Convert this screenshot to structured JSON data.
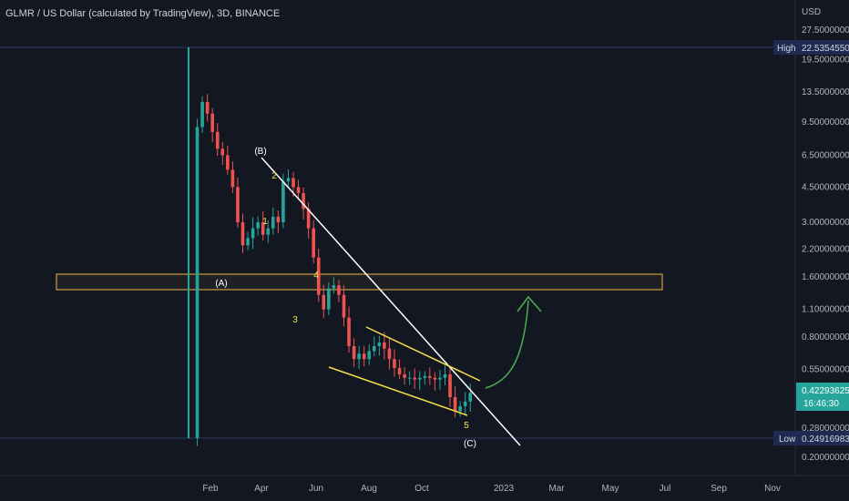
{
  "title": "GLMR / US Dollar (calculated by TradingView), 3D, BINANCE",
  "price_axis": {
    "currency": "USD",
    "ticks": [
      "27.50000000",
      "19.50000000",
      "13.50000000",
      "9.50000000",
      "6.50000000",
      "4.50000000",
      "3.00000000",
      "2.20000000",
      "1.60000000",
      "1.10000000",
      "0.80000000",
      "0.55000000",
      "0.28000000",
      "0.20000000"
    ],
    "high_label": "High",
    "high_value": "22.53545502",
    "low_label": "Low",
    "low_value": "0.24916983",
    "last_price": "0.42293625",
    "countdown": "16:46:30"
  },
  "time_axis": {
    "ticks": [
      "Feb",
      "Apr",
      "Jun",
      "Aug",
      "Oct",
      "2023",
      "Mar",
      "May",
      "Jul",
      "Sep",
      "Nov"
    ]
  },
  "annotations": {
    "waves": [
      "(A)",
      "(B)",
      "(C)"
    ],
    "sub_waves": [
      "1",
      "2",
      "3",
      "4",
      "5"
    ]
  },
  "colors": {
    "background": "#131722",
    "up": "#26a69a",
    "down": "#ef5350",
    "trendline": "#ffffff",
    "channel": "#f2e14b",
    "zone_border": "#f0b44a",
    "projection": "#4caf50",
    "axis_text": "#b2b5be",
    "high_low_box": "#1e2a52"
  },
  "chart_data": {
    "type": "candlestick",
    "scale": "log",
    "x_ticks": [
      "Feb",
      "Apr",
      "Jun",
      "Aug",
      "Oct",
      "2023",
      "Mar",
      "May",
      "Jul",
      "Sep",
      "Nov"
    ],
    "y_ticks": [
      27.5,
      19.5,
      13.5,
      9.5,
      6.5,
      4.5,
      3.0,
      2.2,
      1.6,
      1.1,
      0.8,
      0.55,
      0.28,
      0.2
    ],
    "high": 22.53545502,
    "low": 0.24916983,
    "last": 0.42293625,
    "resistance_zone": [
      1.4,
      1.7
    ],
    "path_closes": [
      0.25,
      9.0,
      12.0,
      10.5,
      8.5,
      7.0,
      6.5,
      5.5,
      4.5,
      3.0,
      2.3,
      2.5,
      2.8,
      3.0,
      2.6,
      2.8,
      3.2,
      3.0,
      4.8,
      5.0,
      4.5,
      4.2,
      3.5,
      2.8,
      2.0,
      1.3,
      1.1,
      1.4,
      1.45,
      1.3,
      1.0,
      0.72,
      0.62,
      0.66,
      0.62,
      0.68,
      0.72,
      0.75,
      0.7,
      0.62,
      0.56,
      0.52,
      0.5,
      0.5,
      0.49,
      0.5,
      0.51,
      0.5,
      0.49,
      0.5,
      0.52,
      0.4,
      0.34,
      0.36,
      0.38,
      0.42
    ],
    "wave_points": [
      {
        "label": "(A)",
        "value": 1.45
      },
      {
        "label": "(B)",
        "value": 6.8
      },
      {
        "label": "(C)",
        "value": 0.27
      },
      {
        "label": "1",
        "value": 2.9
      },
      {
        "label": "2",
        "value": 5.6
      },
      {
        "label": "3",
        "value": 1.0
      },
      {
        "label": "4",
        "value": 1.45
      },
      {
        "label": "5",
        "value": 0.31
      }
    ]
  }
}
